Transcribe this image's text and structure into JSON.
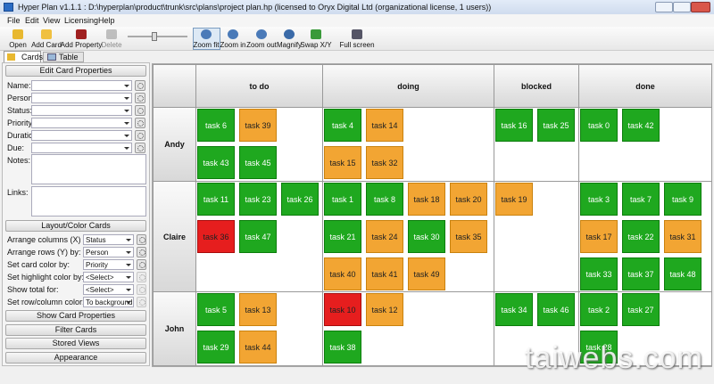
{
  "window": {
    "title": "Hyper Plan v1.1.1 : D:\\hyperplan\\product\\trunk\\src\\plans\\project plan.hp (licensed to Oryx Digital Ltd (organizational license, 1 users))"
  },
  "menu": [
    "File",
    "Edit",
    "View",
    "Licensing",
    "Help"
  ],
  "toolbar": [
    "Open",
    "Add Card",
    "Add Property",
    "Delete",
    "Zoom fit",
    "Zoom in",
    "Zoom out",
    "Magnify",
    "Swap X/Y",
    "Full screen"
  ],
  "tabs": [
    "Cards",
    "Table"
  ],
  "side_panel": {
    "edit_section": "Edit Card Properties",
    "fields": [
      "Name:",
      "Person:",
      "Status:",
      "Priority:",
      "Duration:",
      "Due:"
    ],
    "text_fields": [
      "Notes:",
      "Links:"
    ],
    "layout_section": "Layout/Color Cards",
    "layout_rows": [
      {
        "label": "Arrange columns (X) by:",
        "value": "Status"
      },
      {
        "label": "Arrange rows (Y) by:",
        "value": "Person"
      },
      {
        "label": "Set card color by:",
        "value": "Priority"
      },
      {
        "label": "Set highlight color by:",
        "value": "<Select>"
      },
      {
        "label": "Show total for:",
        "value": "<Select>"
      },
      {
        "label": "Set row/column color:",
        "value": "To background"
      }
    ],
    "buttons": [
      "Show Card Properties",
      "Filter Cards",
      "Stored Views",
      "Appearance"
    ]
  },
  "board": {
    "columns": [
      "to do",
      "doing",
      "blocked",
      "done"
    ],
    "rows": [
      {
        "name": "Andy",
        "cells": [
          [
            {
              "label": "task 6",
              "color": "green"
            },
            {
              "label": "task 39",
              "color": "orange"
            },
            {
              "label": "task 43",
              "color": "green"
            },
            {
              "label": "task 45",
              "color": "green"
            }
          ],
          [
            {
              "label": "task 4",
              "color": "green"
            },
            {
              "label": "task 14",
              "color": "orange"
            },
            {
              "label": "task 15",
              "color": "orange"
            },
            {
              "label": "task 32",
              "color": "orange"
            }
          ],
          [
            {
              "label": "task 16",
              "color": "green"
            },
            {
              "label": "task 25",
              "color": "green"
            }
          ],
          [
            {
              "label": "task 0",
              "color": "green"
            },
            {
              "label": "task 42",
              "color": "green"
            }
          ]
        ]
      },
      {
        "name": "Claire",
        "cells": [
          [
            {
              "label": "task 11",
              "color": "green"
            },
            {
              "label": "task 23",
              "color": "green"
            },
            {
              "label": "task 26",
              "color": "green"
            },
            {
              "label": "task 36",
              "color": "red"
            },
            {
              "label": "task 47",
              "color": "green"
            }
          ],
          [
            {
              "label": "task 1",
              "color": "green"
            },
            {
              "label": "task 8",
              "color": "green"
            },
            {
              "label": "task 18",
              "color": "orange"
            },
            {
              "label": "task 20",
              "color": "orange"
            },
            {
              "label": "task 21",
              "color": "green"
            },
            {
              "label": "task 24",
              "color": "orange"
            },
            {
              "label": "task 30",
              "color": "green"
            },
            {
              "label": "task 35",
              "color": "orange"
            },
            {
              "label": "task 40",
              "color": "orange"
            },
            {
              "label": "task 41",
              "color": "orange"
            },
            {
              "label": "task 49",
              "color": "orange"
            }
          ],
          [
            {
              "label": "task 19",
              "color": "orange"
            }
          ],
          [
            {
              "label": "task 3",
              "color": "green"
            },
            {
              "label": "task 7",
              "color": "green"
            },
            {
              "label": "task 9",
              "color": "green"
            },
            {
              "label": "task 17",
              "color": "orange"
            },
            {
              "label": "task 22",
              "color": "green"
            },
            {
              "label": "task 31",
              "color": "orange"
            },
            {
              "label": "task 33",
              "color": "green"
            },
            {
              "label": "task 37",
              "color": "green"
            },
            {
              "label": "task 48",
              "color": "green"
            }
          ]
        ]
      },
      {
        "name": "John",
        "cells": [
          [
            {
              "label": "task 5",
              "color": "green"
            },
            {
              "label": "task 13",
              "color": "orange"
            },
            {
              "label": "task 29",
              "color": "green"
            },
            {
              "label": "task 44",
              "color": "orange"
            }
          ],
          [
            {
              "label": "task 10",
              "color": "red"
            },
            {
              "label": "task 12",
              "color": "orange"
            },
            {
              "label": "task 38",
              "color": "green"
            }
          ],
          [
            {
              "label": "task 34",
              "color": "green"
            },
            {
              "label": "task 46",
              "color": "green"
            }
          ],
          [
            {
              "label": "task 2",
              "color": "green"
            },
            {
              "label": "task 27",
              "color": "green"
            },
            {
              "label": "task 28",
              "color": "green"
            }
          ]
        ]
      }
    ]
  },
  "watermark": "taiwebs.com"
}
